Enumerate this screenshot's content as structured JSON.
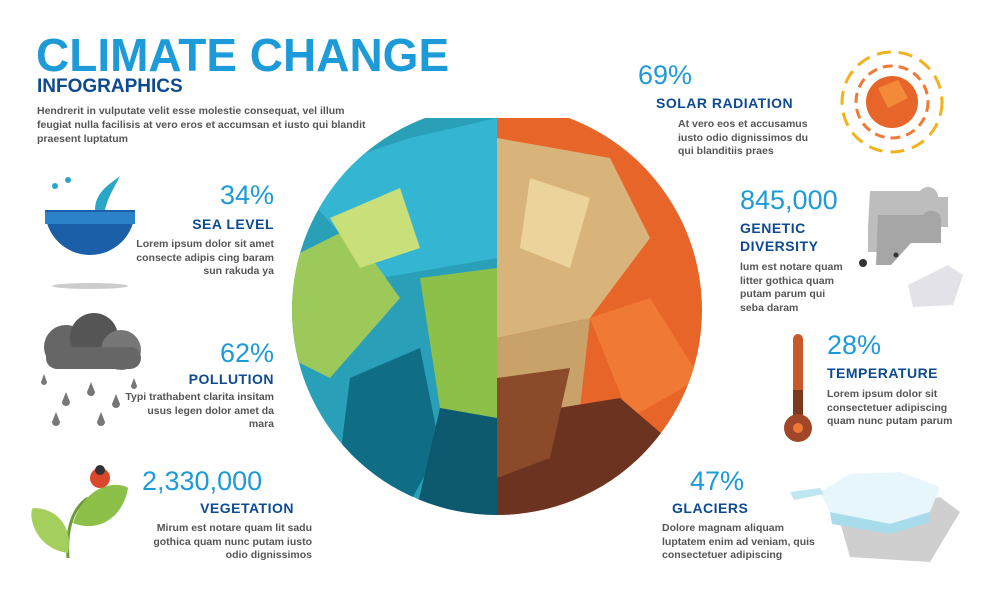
{
  "header": {
    "title": "CLIMATE CHANGE",
    "subtitle": "INFOGRAPHICS",
    "intro": "Hendrerit in vulputate velit esse molestie consequat, vel illum feugiat nulla facilisis at vero eros et accumsan et iusto qui blandit praesent luptatum"
  },
  "stats": {
    "sea_level": {
      "value": "34%",
      "label": "SEA LEVEL",
      "desc": "Lorem ipsum dolor sit amet consecte adipis cing baram sun rakuda ya",
      "icon": "whale-tail-ocean-icon"
    },
    "pollution": {
      "value": "62%",
      "label": "POLLUTION",
      "desc": "Typi trathabent clarita insitam usus legen dolor amet da mara",
      "icon": "rain-cloud-icon"
    },
    "vegetation": {
      "value": "2,330,000",
      "label": "VEGETATION",
      "desc": "Mirum est notare quam lit sadu gothica quam nunc putam iusto odio dignissimos",
      "icon": "leaf-ladybug-icon"
    },
    "solar_radiation": {
      "value": "69%",
      "label": "SOLAR RADIATION",
      "desc": "At vero eos et accusamus iusto odio dignissimos du qui blanditiis praes",
      "icon": "sun-icon"
    },
    "genetic_diversity": {
      "value": "845,000",
      "label1": "GENETIC",
      "label2": "DIVERSITY",
      "desc": "lum est notare quam litter gothica quam putam parum qui seba  daram",
      "icon": "polar-bear-icon"
    },
    "temperature": {
      "value": "28%",
      "label": "TEMPERATURE",
      "desc": "Lorem ipsum dolor sit consectetuer adipiscing quam nunc putam parum",
      "icon": "thermometer-icon"
    },
    "glaciers": {
      "value": "47%",
      "label": "GLACIERS",
      "desc": "Dolore magnam aliquam luptatem enim ad veniam, quis consectetuer adipiscing",
      "icon": "iceberg-icon"
    }
  },
  "colors": {
    "accent": "#1d9ad8",
    "heading": "#0d4a90",
    "text": "#555555",
    "globe_cool": "#2a9fb8",
    "globe_warm": "#e8652a"
  }
}
